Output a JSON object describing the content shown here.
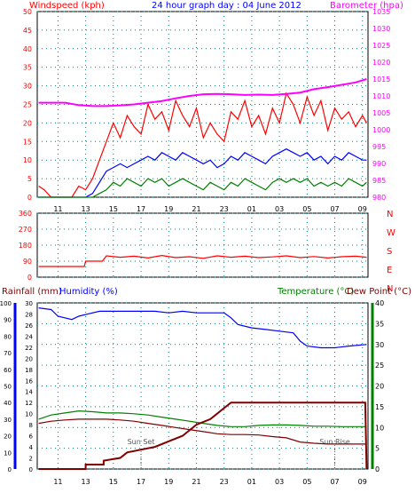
{
  "colors": {
    "wind_red": "#ff0000",
    "wind_blue": "#0000ff",
    "wind_green": "#008000",
    "barometer": "#ff00ff",
    "direction_red": "#ff0000",
    "humidity_blue": "#0000ff",
    "rain_dark": "#800000",
    "temperature_green": "#008000",
    "dew_point": "#800000",
    "grid": "#008080",
    "axis": "#000000",
    "left_axis_red": "#ff0000",
    "left_axis_blue": "#0000ff",
    "right_axis_magenta": "#ff00ff",
    "right_axis_green": "#008000"
  },
  "chart_data": [
    {
      "type": "line",
      "title": "24 hour graph day : 04 June 2012",
      "left_axis_label": "Windspeed (kph)",
      "right_axis_label": "Barometer (hpa)",
      "x_ticks": [
        "11",
        "13",
        "15",
        "17",
        "19",
        "21",
        "23",
        "01",
        "03",
        "05",
        "07",
        "09"
      ],
      "x_range_hours": [
        9.5,
        33.4
      ],
      "y_left_range": [
        0,
        50
      ],
      "y_left_ticks": [
        "0",
        "5",
        "10",
        "15",
        "20",
        "25",
        "30",
        "35",
        "40",
        "45",
        "50"
      ],
      "y_right_range": [
        980,
        1035
      ],
      "y_right_ticks": [
        "980",
        "985",
        "990",
        "995",
        "1000",
        "1005",
        "1010",
        "1015",
        "1020",
        "1025",
        "1030",
        "1035"
      ],
      "grid": true,
      "series": [
        {
          "role": "gust",
          "axis": "left",
          "x": [
            9.6,
            10.0,
            10.5,
            11.0,
            11.5,
            12.0,
            12.5,
            13.0,
            13.5,
            14.0,
            14.5,
            15.0,
            15.5,
            16.0,
            16.5,
            17.0,
            17.5,
            18.0,
            18.5,
            19.0,
            19.5,
            20.0,
            20.5,
            21.0,
            21.5,
            22.0,
            22.5,
            23.0,
            23.5,
            24.0,
            24.5,
            25.0,
            25.5,
            26.0,
            26.5,
            27.0,
            27.5,
            28.0,
            28.5,
            29.0,
            29.5,
            30.0,
            30.5,
            31.0,
            31.5,
            32.0,
            32.5,
            33.0,
            33.3
          ],
          "values": [
            3,
            2,
            0,
            0,
            0,
            0,
            3,
            2,
            5,
            10,
            15,
            20,
            16,
            22,
            19,
            17,
            25,
            21,
            23,
            18,
            26,
            22,
            19,
            24,
            16,
            20,
            17,
            15,
            23,
            21,
            26,
            19,
            22,
            17,
            24,
            20,
            28,
            25,
            20,
            27,
            22,
            26,
            18,
            24,
            21,
            23,
            19,
            22,
            20
          ]
        },
        {
          "role": "average",
          "axis": "left",
          "x": [
            9.6,
            10.0,
            10.5,
            11.0,
            11.5,
            12.0,
            12.5,
            13.0,
            13.5,
            14.0,
            14.5,
            15.0,
            15.5,
            16.0,
            16.5,
            17.0,
            17.5,
            18.0,
            18.5,
            19.0,
            19.5,
            20.0,
            20.5,
            21.0,
            21.5,
            22.0,
            22.5,
            23.0,
            23.5,
            24.0,
            24.5,
            25.0,
            25.5,
            26.0,
            26.5,
            27.0,
            27.5,
            28.0,
            28.5,
            29.0,
            29.5,
            30.0,
            30.5,
            31.0,
            31.5,
            32.0,
            32.5,
            33.0,
            33.3
          ],
          "values": [
            0,
            0,
            0,
            0,
            0,
            0,
            0,
            0,
            1,
            4,
            7,
            8,
            9,
            8,
            9,
            10,
            11,
            10,
            12,
            11,
            10,
            12,
            11,
            10,
            9,
            10,
            8,
            9,
            11,
            10,
            12,
            11,
            10,
            9,
            11,
            12,
            13,
            12,
            11,
            12,
            10,
            11,
            9,
            11,
            10,
            12,
            11,
            10,
            10
          ]
        },
        {
          "role": "lull",
          "axis": "left",
          "x": [
            9.6,
            10.0,
            10.5,
            11.0,
            11.5,
            12.0,
            12.5,
            13.0,
            13.5,
            14.0,
            14.5,
            15.0,
            15.5,
            16.0,
            16.5,
            17.0,
            17.5,
            18.0,
            18.5,
            19.0,
            19.5,
            20.0,
            20.5,
            21.0,
            21.5,
            22.0,
            22.5,
            23.0,
            23.5,
            24.0,
            24.5,
            25.0,
            25.5,
            26.0,
            26.5,
            27.0,
            27.5,
            28.0,
            28.5,
            29.0,
            29.5,
            30.0,
            30.5,
            31.0,
            31.5,
            32.0,
            32.5,
            33.0,
            33.3
          ],
          "values": [
            0,
            0,
            0,
            0,
            0,
            0,
            0,
            0,
            0,
            1,
            2,
            4,
            3,
            5,
            4,
            3,
            5,
            4,
            5,
            3,
            4,
            5,
            4,
            3,
            2,
            4,
            3,
            2,
            4,
            3,
            5,
            4,
            3,
            2,
            4,
            5,
            4,
            5,
            4,
            5,
            3,
            4,
            3,
            4,
            3,
            5,
            4,
            3,
            4
          ]
        },
        {
          "role": "barometer",
          "axis": "right",
          "x": [
            9.6,
            10.5,
            11.5,
            12.5,
            13.5,
            14.5,
            15.5,
            16.5,
            17.5,
            18.5,
            19.5,
            20.5,
            21.5,
            22.5,
            23.5,
            24.5,
            25.5,
            26.5,
            27.5,
            28.5,
            29.5,
            30.5,
            31.5,
            32.5,
            33.3
          ],
          "values": [
            1008,
            1008,
            1008,
            1007.3,
            1007,
            1007,
            1007.2,
            1007.5,
            1008,
            1008.5,
            1009.3,
            1010,
            1010.5,
            1010.6,
            1010.5,
            1010.3,
            1010.4,
            1010.3,
            1010.6,
            1011,
            1012,
            1012.6,
            1013.3,
            1014,
            1015
          ]
        }
      ]
    },
    {
      "type": "line",
      "title": "",
      "y_range": [
        0,
        360
      ],
      "y_ticks": [
        "0",
        "90",
        "180",
        "270",
        "360"
      ],
      "compass_labels": [
        "N",
        "W",
        "S",
        "E",
        "N"
      ],
      "x_range_hours": [
        9.5,
        33.4
      ],
      "grid": true,
      "series": [
        {
          "role": "wind_direction",
          "x": [
            9.6,
            11.0,
            12.0,
            12.9,
            13.0,
            14.2,
            14.5,
            15.5,
            16.5,
            17.5,
            18.5,
            19.5,
            20.5,
            21.5,
            22.5,
            23.5,
            24.5,
            25.5,
            26.5,
            27.5,
            28.5,
            29.5,
            30.5,
            31.5,
            32.5,
            33.3
          ],
          "values": [
            60,
            60,
            60,
            60,
            90,
            90,
            120,
            112,
            118,
            108,
            122,
            110,
            115,
            106,
            120,
            112,
            118,
            110,
            114,
            120,
            110,
            116,
            108,
            115,
            118,
            112
          ]
        }
      ]
    },
    {
      "type": "line",
      "left_axis_label": "Rainfall (mm)",
      "left_axis_label2": "Humidity (%)",
      "right_axis_label": "Temperature (°C)",
      "right_axis_label2": "Dew Point (°C)",
      "x_ticks": [
        "11",
        "13",
        "15",
        "17",
        "19",
        "21",
        "23",
        "01",
        "03",
        "05",
        "07",
        "09"
      ],
      "x_range_hours": [
        9.5,
        33.4
      ],
      "y_humidity_range": [
        0,
        100
      ],
      "y_humidity_ticks": [
        "0",
        "10",
        "20",
        "30",
        "40",
        "50",
        "60",
        "70",
        "80",
        "90",
        "100"
      ],
      "y_rain_range": [
        0,
        30
      ],
      "y_rain_ticks": [
        "0",
        "2",
        "4",
        "6",
        "8",
        "10",
        "12",
        "14",
        "16",
        "18",
        "20",
        "22",
        "24",
        "26",
        "28",
        "30"
      ],
      "y_temp_range": [
        0,
        40
      ],
      "y_temp_ticks": [
        "0",
        "5",
        "10",
        "15",
        "20",
        "25",
        "30",
        "35",
        "40"
      ],
      "annotations": [
        {
          "text": "Sun Set",
          "x": 17.0
        },
        {
          "text": "Sun Rise",
          "x": 31.0
        }
      ],
      "grid": true,
      "series": [
        {
          "role": "humidity",
          "axis": "humidity",
          "x": [
            9.6,
            10.5,
            11.0,
            12.0,
            12.5,
            13.0,
            14.0,
            15.0,
            16.0,
            17.0,
            18.0,
            19.0,
            20.0,
            21.0,
            22.0,
            23.0,
            23.5,
            24.0,
            25.0,
            26.0,
            27.0,
            28.0,
            28.5,
            29.0,
            30.0,
            31.0,
            32.0,
            33.3
          ],
          "values": [
            97,
            96,
            92,
            90,
            92,
            93,
            95,
            95,
            95,
            95,
            95,
            94,
            95,
            94,
            94,
            94,
            91,
            87,
            85,
            84,
            83,
            82,
            77,
            74,
            73,
            73,
            74,
            75
          ]
        },
        {
          "role": "temperature",
          "axis": "temp",
          "x": [
            9.6,
            10.5,
            11.5,
            12.5,
            13.5,
            14.5,
            15.5,
            16.5,
            17.5,
            18.5,
            19.5,
            20.5,
            21.5,
            22.5,
            23.5,
            24.5,
            25.5,
            26.5,
            27.5,
            28.5,
            29.5,
            30.5,
            31.5,
            32.5,
            33.3
          ],
          "values": [
            12,
            13,
            13.5,
            14,
            13.8,
            13.5,
            13.5,
            13.3,
            13,
            12.5,
            12,
            11.5,
            11,
            10.5,
            10.2,
            10.2,
            10.5,
            10.6,
            10.6,
            10.5,
            10.3,
            10.3,
            10.2,
            10.2,
            10.2
          ]
        },
        {
          "role": "dew_point",
          "axis": "temp",
          "x": [
            9.6,
            10.5,
            11.5,
            12.5,
            13.5,
            14.5,
            15.5,
            16.5,
            17.5,
            18.5,
            19.5,
            20.5,
            21.5,
            22.5,
            23.5,
            24.5,
            25.5,
            26.5,
            27.5,
            28.5,
            29.5,
            30.5,
            31.5,
            32.5,
            33.3
          ],
          "values": [
            11,
            11.5,
            11.8,
            12,
            12,
            12,
            11.8,
            11.5,
            11,
            10.5,
            10,
            9.5,
            9,
            8.5,
            8.3,
            8.3,
            8.2,
            7.8,
            7.5,
            6.5,
            6.2,
            6,
            6,
            6,
            6
          ]
        },
        {
          "role": "rainfall",
          "axis": "rain",
          "x": [
            9.6,
            13.0,
            13.0,
            14.3,
            14.3,
            15.5,
            16.0,
            17.0,
            18.0,
            19.0,
            20.0,
            20.5,
            21.0,
            22.0,
            22.5,
            23.0,
            23.5,
            33.2,
            33.3
          ],
          "values": [
            0,
            0,
            0.8,
            0.8,
            1.5,
            2,
            3,
            3.5,
            4,
            5,
            6,
            7,
            8,
            9,
            10,
            11,
            12,
            12,
            0
          ]
        }
      ]
    }
  ],
  "texts": {
    "top_title": "24 hour graph day : 04 June 2012",
    "wind_label": "Windspeed (kph)",
    "baro_label": "Barometer (hpa)",
    "rain_label": "Rainfall (mm)",
    "humidity_label": "Humidity (%)",
    "temp_label": "Temperature (°C)",
    "dew_label": "Dew Point (°C)"
  }
}
